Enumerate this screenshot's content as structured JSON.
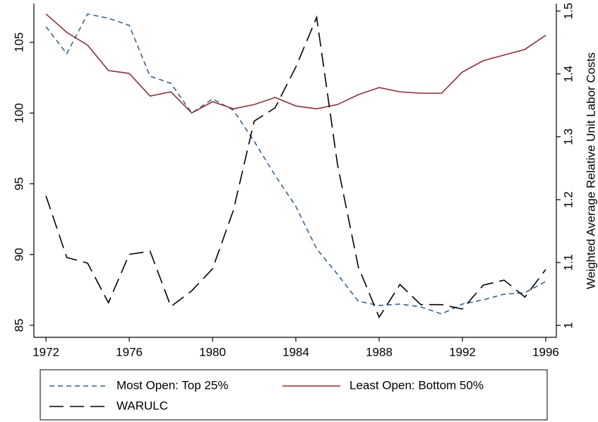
{
  "chart_data": {
    "type": "line",
    "y2label": "Weighted Average Relative Unit Labor Costs",
    "x": [
      1972,
      1973,
      1974,
      1975,
      1976,
      1977,
      1978,
      1979,
      1980,
      1981,
      1982,
      1983,
      1984,
      1985,
      1986,
      1987,
      1988,
      1989,
      1990,
      1991,
      1992,
      1993,
      1994,
      1995,
      1996
    ],
    "xlim": [
      1971.42,
      1996.51
    ],
    "xticks": [
      1972,
      1976,
      1980,
      1984,
      1988,
      1992,
      1996
    ],
    "ylim": [
      84.15,
      107.74
    ],
    "yticks": [
      85,
      90,
      95,
      100,
      105
    ],
    "y2lim": [
      0.981,
      1.512
    ],
    "y2ticks": [
      1,
      1.1,
      1.2,
      1.3,
      1.4,
      1.5
    ],
    "grid": false,
    "series": [
      {
        "name": "Most Open: Top 25%",
        "color": "#3a6489",
        "dash": "7,5",
        "values": [
          106.1,
          104.2,
          107.0,
          106.7,
          106.2,
          102.6,
          102.1,
          100.0,
          101.0,
          100.2,
          98.0,
          95.6,
          93.4,
          90.4,
          88.6,
          86.7,
          86.4,
          86.5,
          86.3,
          85.8,
          86.5,
          86.8,
          87.2,
          87.3,
          88.1
        ]
      },
      {
        "name": "Least Open: Bottom 50%",
        "color": "#8c2f3a",
        "dash": "none",
        "values": [
          107.0,
          105.7,
          104.8,
          103.0,
          102.8,
          101.2,
          101.5,
          100.0,
          100.8,
          100.3,
          100.6,
          101.1,
          100.5,
          100.3,
          100.6,
          101.3,
          101.8,
          101.5,
          101.4,
          101.4,
          102.9,
          103.7,
          104.1,
          104.5,
          105.5
        ]
      },
      {
        "name": "WARULC",
        "color": "#000000",
        "dash": "20,9",
        "axis": "y2",
        "values": [
          1.206,
          1.108,
          1.099,
          1.036,
          1.113,
          1.118,
          1.03,
          1.055,
          1.09,
          1.183,
          1.325,
          1.346,
          1.411,
          1.49,
          1.256,
          1.093,
          1.013,
          1.065,
          1.033,
          1.033,
          1.026,
          1.064,
          1.072,
          1.045,
          1.089
        ]
      }
    ]
  }
}
